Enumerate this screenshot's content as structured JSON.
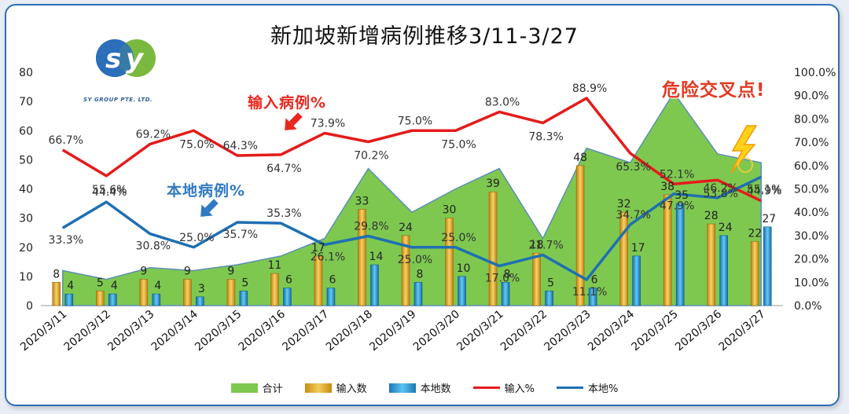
{
  "chart_data": {
    "type": "bar",
    "title": "新加坡新增病例推移3/11-3/27",
    "categories": [
      "2020/3/11",
      "2020/3/12",
      "2020/3/13",
      "2020/3/14",
      "2020/3/15",
      "2020/3/16",
      "2020/3/17",
      "2020/3/18",
      "2020/3/19",
      "2020/3/20",
      "2020/3/21",
      "2020/3/22",
      "2020/3/23",
      "2020/3/24",
      "2020/3/25",
      "2020/3/26",
      "2020/3/27"
    ],
    "series": [
      {
        "name": "合计",
        "type": "area",
        "axis": "left",
        "color": "#7ec850",
        "values": [
          12,
          9,
          13,
          12,
          14,
          17,
          23,
          47,
          32,
          40,
          47,
          23,
          54,
          49,
          73,
          52,
          49
        ]
      },
      {
        "name": "输入数",
        "type": "bar",
        "axis": "left",
        "color": "#e8b53b",
        "values": [
          8,
          5,
          9,
          9,
          9,
          11,
          17,
          33,
          24,
          30,
          39,
          18,
          48,
          32,
          38,
          28,
          22
        ]
      },
      {
        "name": "本地数",
        "type": "bar",
        "axis": "left",
        "color": "#2e9fd8",
        "values": [
          4,
          4,
          4,
          3,
          5,
          6,
          6,
          14,
          8,
          10,
          8,
          5,
          6,
          17,
          35,
          24,
          27
        ]
      },
      {
        "name": "输入%",
        "type": "line",
        "axis": "right",
        "color": "#e41b1b",
        "values": [
          66.7,
          55.6,
          69.2,
          75.0,
          64.3,
          64.7,
          73.9,
          70.2,
          75.0,
          75.0,
          83.0,
          78.3,
          88.9,
          65.3,
          52.1,
          53.8,
          44.9
        ]
      },
      {
        "name": "本地%",
        "type": "line",
        "axis": "right",
        "color": "#1f6fb3",
        "values": [
          33.3,
          44.4,
          30.8,
          25.0,
          35.7,
          35.3,
          26.1,
          29.8,
          25.0,
          25.0,
          17.0,
          21.7,
          11.1,
          34.7,
          47.9,
          46.2,
          55.1
        ]
      }
    ],
    "bar_labels": {
      "输入数": [
        "8",
        "5",
        "9",
        "9",
        "9",
        "11",
        "17",
        "33",
        "24",
        "30",
        "39",
        "18",
        "48",
        "32",
        "38",
        "28",
        "22"
      ],
      "本地数": [
        "4",
        "4",
        "4",
        "3",
        "5",
        "6",
        "6",
        "14",
        "8",
        "10",
        "8",
        "5",
        "6",
        "17",
        "35",
        "24",
        "27"
      ]
    },
    "pct_labels": {
      "输入%": [
        "66.7%",
        "55.6%",
        "69.2%",
        "75.0%",
        "64.3%",
        "64.7%",
        "73.9%",
        "70.2%",
        "75.0%",
        "75.0%",
        "83.0%",
        "78.3%",
        "88.9%",
        "65.3%",
        "52.1%",
        "53.8%",
        "44.9%"
      ],
      "本地%": [
        "33.3%",
        "44.4%",
        "30.8%",
        "25.0%",
        "35.7%",
        "35.3%",
        "26.1%",
        "29.8%",
        "25.0%",
        "25.0%",
        "17.0%",
        "21.7%",
        "11.1%",
        "34.7%",
        "47.9%",
        "46.2%",
        "55.1%"
      ]
    },
    "ylim_left": [
      0,
      80
    ],
    "ylim_right": [
      0,
      100
    ],
    "yticks_left": [
      "0",
      "10",
      "20",
      "30",
      "40",
      "50",
      "60",
      "70",
      "80"
    ],
    "yticks_right": [
      "0.0%",
      "10.0%",
      "20.0%",
      "30.0%",
      "40.0%",
      "50.0%",
      "60.0%",
      "70.0%",
      "80.0%",
      "90.0%",
      "100.0%"
    ],
    "grid": false,
    "legend_position": "bottom"
  },
  "annotations": {
    "danger": "危险交叉点!",
    "import_callout": "输入病例%",
    "local_callout": "本地病例%"
  },
  "logo": {
    "letters": "SY",
    "text": "SY GROUP PTE. LTD."
  },
  "legend": [
    {
      "label": "合计",
      "kind": "box",
      "color": "#7ec850"
    },
    {
      "label": "输入数",
      "kind": "box",
      "color": "#e8b53b"
    },
    {
      "label": "本地数",
      "kind": "box",
      "color": "#2e9fd8"
    },
    {
      "label": "输入%",
      "kind": "line",
      "color": "#e41b1b"
    },
    {
      "label": "本地%",
      "kind": "line",
      "color": "#1f6fb3"
    }
  ]
}
